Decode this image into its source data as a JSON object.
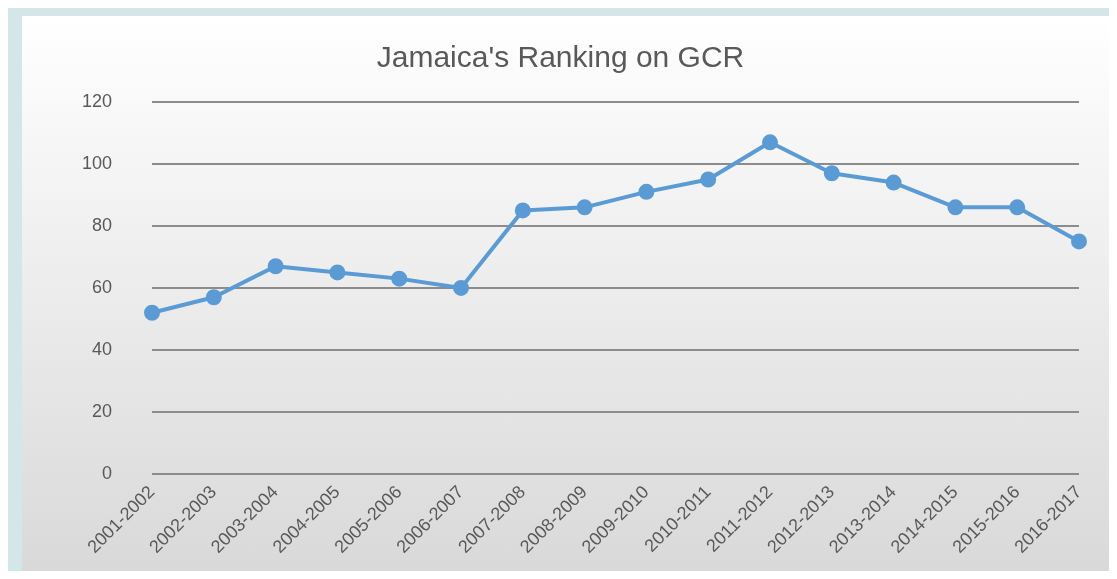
{
  "chart_data": {
    "type": "line",
    "title": "Jamaica's Ranking on GCR",
    "categories": [
      "2001-2002",
      "2002-2003",
      "2003-2004",
      "2004-2005",
      "2005-2006",
      "2006-2007",
      "2007-2008",
      "2008-2009",
      "2009-2010",
      "2010-2011",
      "2011-2012",
      "2012-2013",
      "2013-2014",
      "2014-2015",
      "2015-2016",
      "2016-2017"
    ],
    "series": [
      {
        "color": "#5b9bd5",
        "values": [
          52,
          57,
          67,
          65,
          63,
          60,
          85,
          86,
          91,
          95,
          107,
          97,
          94,
          86,
          86,
          75
        ]
      }
    ],
    "ylim": [
      0,
      120
    ],
    "yticks": [
      0,
      20,
      40,
      60,
      80,
      100,
      120
    ],
    "grid": "y",
    "legend": false,
    "marker": "circle",
    "line_style": "solid"
  }
}
